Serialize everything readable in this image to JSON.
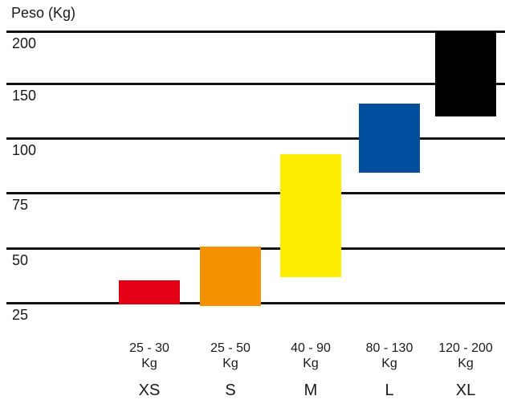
{
  "chart_data": {
    "type": "bar",
    "subtype": "floating-range",
    "ylabel": "Peso (Kg)",
    "yticks": [
      "200",
      "150",
      "100",
      "75",
      "50",
      "25"
    ],
    "grid": true,
    "categories": [
      "XS",
      "S",
      "M",
      "L",
      "XL"
    ],
    "range_labels": [
      {
        "line1": "25 - 30",
        "line2": "Kg"
      },
      {
        "line1": "25 - 50",
        "line2": "Kg"
      },
      {
        "line1": "40 - 90",
        "line2": "Kg"
      },
      {
        "line1": "80 - 130",
        "line2": "Kg"
      },
      {
        "line1": "120 - 200",
        "line2": "Kg"
      }
    ],
    "ranges": [
      [
        25,
        30
      ],
      [
        25,
        50
      ],
      [
        40,
        90
      ],
      [
        80,
        130
      ],
      [
        120,
        200
      ]
    ],
    "colors": [
      "#e30016",
      "#f39200",
      "#ffed00",
      "#004f9f",
      "#000000"
    ]
  }
}
